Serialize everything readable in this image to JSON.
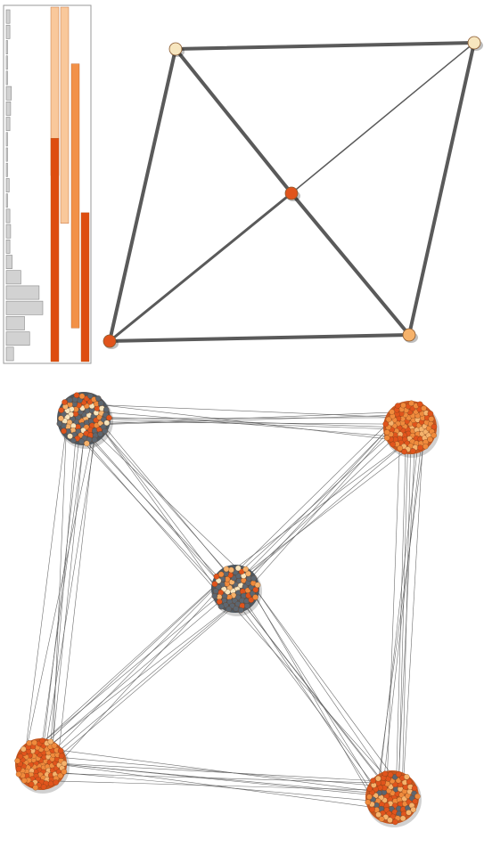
{
  "colors": {
    "edge_dark": "#5a5a5a",
    "edge_light": "#6e6e6e",
    "node_cream": "#f7e6bf",
    "node_peach": "#f6b26b",
    "node_orange": "#f08a3c",
    "node_deep": "#e0541c",
    "node_slate": "#5c6670",
    "bar_gray": "#d2d2d2",
    "bar_border": "#8a8a8a",
    "bar_peach": "#f9c89b",
    "bar_orange": "#f29148",
    "bar_deep": "#de4d0f"
  },
  "histogram": {
    "gray_bars": [
      0.05,
      0.05,
      0,
      0,
      0,
      0.07,
      0.06,
      0.05,
      0,
      0,
      0,
      0.04,
      0,
      0.05,
      0.06,
      0.05,
      0.08,
      0.2,
      0.45,
      0.5,
      0.25,
      0.32,
      0.1
    ],
    "orange_ranges": [
      {
        "color_key": "bar_peach",
        "start": 0.0,
        "end": 0.475
      },
      {
        "color_key": "bar_peach",
        "start": 0.0,
        "end": 0.61
      },
      {
        "color_key": "bar_orange",
        "start": 0.16,
        "end": 0.905
      },
      {
        "color_key": "bar_deep",
        "start": 0.37,
        "end": 1.0
      },
      {
        "color_key": "bar_deep",
        "start": 0.58,
        "end": 1.0
      }
    ]
  },
  "top_graph": {
    "nodes": [
      {
        "id": "top-left",
        "color_key": "node_cream"
      },
      {
        "id": "top-right",
        "color_key": "node_cream"
      },
      {
        "id": "center",
        "color_key": "node_deep"
      },
      {
        "id": "bottom-left",
        "color_key": "node_deep"
      },
      {
        "id": "bottom-right",
        "color_key": "node_peach"
      }
    ],
    "edges": [
      [
        "top-left",
        "top-right"
      ],
      [
        "top-left",
        "bottom-left"
      ],
      [
        "top-right",
        "bottom-right"
      ],
      [
        "bottom-left",
        "bottom-right"
      ],
      [
        "top-left",
        "center"
      ],
      [
        "center",
        "bottom-right"
      ],
      [
        "bottom-left",
        "center"
      ],
      [
        "center",
        "top-right"
      ]
    ]
  },
  "bottom_graph": {
    "clusters": [
      {
        "id": "top-left",
        "mix": "slate",
        "node_count": 90
      },
      {
        "id": "top-right",
        "mix": "orange",
        "node_count": 100
      },
      {
        "id": "center",
        "mix": "slate",
        "node_count": 70
      },
      {
        "id": "bottom-left",
        "mix": "orange",
        "node_count": 100
      },
      {
        "id": "bottom-right",
        "mix": "mixed",
        "node_count": 90
      }
    ],
    "bundles": [
      [
        "top-left",
        "top-right"
      ],
      [
        "top-left",
        "bottom-left"
      ],
      [
        "top-right",
        "bottom-right"
      ],
      [
        "bottom-left",
        "bottom-right"
      ],
      [
        "top-left",
        "center"
      ],
      [
        "center",
        "bottom-right"
      ],
      [
        "bottom-left",
        "center"
      ],
      [
        "center",
        "top-right"
      ]
    ]
  }
}
